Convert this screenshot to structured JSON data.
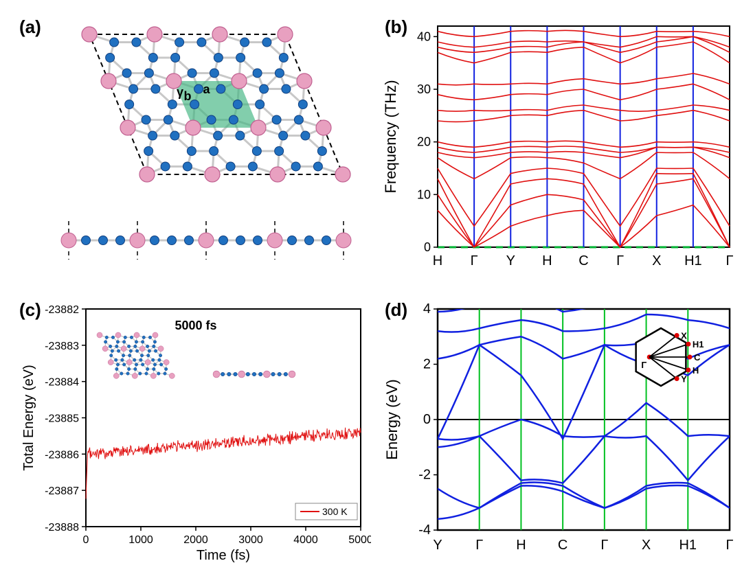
{
  "panels": [
    "(a)",
    "(b)",
    "(c)",
    "(d)"
  ],
  "a": {
    "lattice_labels": {
      "a": "a",
      "b": "b",
      "gamma": "γ"
    },
    "atom_colors": {
      "large": "#e8a0c0",
      "large_stroke": "#c06090",
      "small": "#2070c0",
      "small_stroke": "#104080",
      "bond": "#c8c8c8",
      "cell_fill": "#3fb380",
      "cell_fill_opacity": 0.65,
      "border_dash": "#000000"
    }
  },
  "b": {
    "xlabel_ticks": [
      "H",
      "Γ",
      "Y",
      "H",
      "C",
      "Γ",
      "X",
      "H1",
      "Γ"
    ],
    "ylabel": "Frequency (THz)",
    "ylim": [
      0,
      42
    ],
    "yticks": [
      0,
      10,
      20,
      30,
      40
    ],
    "vertical_line_color": "#1020e0",
    "line_color": "#e01010",
    "zero_dash_color": "#00b030",
    "axis_box_color": "#000000",
    "bands": [
      [
        7,
        0,
        4,
        6,
        7,
        0,
        6,
        8,
        0
      ],
      [
        10,
        0,
        8,
        10,
        9,
        0,
        12,
        13,
        0
      ],
      [
        13,
        0,
        12,
        13,
        12,
        0,
        14,
        14,
        0
      ],
      [
        15,
        4,
        14,
        15,
        14,
        4,
        15,
        15,
        4
      ],
      [
        17,
        13,
        17,
        17,
        16,
        13,
        18,
        18,
        13
      ],
      [
        18,
        17,
        18,
        18,
        18,
        17,
        19,
        19,
        17
      ],
      [
        19,
        18,
        19,
        19,
        19,
        18,
        19,
        19,
        18
      ],
      [
        20,
        19,
        20,
        20,
        20,
        19,
        20,
        20,
        19
      ],
      [
        24,
        24,
        25,
        25,
        26,
        24,
        25,
        26,
        24
      ],
      [
        26,
        26,
        26,
        26,
        27,
        26,
        26,
        27,
        26
      ],
      [
        29,
        28,
        29,
        29,
        30,
        28,
        30,
        31,
        28
      ],
      [
        31,
        31,
        31,
        31,
        32,
        31,
        32,
        33,
        31
      ],
      [
        37,
        35,
        37,
        37,
        38,
        35,
        38,
        39,
        35
      ],
      [
        38,
        37,
        38,
        38,
        39,
        37,
        39,
        40,
        37
      ],
      [
        39,
        38,
        39,
        39,
        39,
        38,
        40,
        40,
        38
      ],
      [
        41,
        40,
        41,
        41,
        41,
        40,
        41,
        41,
        40
      ]
    ]
  },
  "c": {
    "inset_label": "5000 fs",
    "xlabel": "Time (fs)",
    "ylabel": "Total Energy (eV)",
    "xlim": [
      0,
      5000
    ],
    "xticks": [
      0,
      1000,
      2000,
      3000,
      4000,
      5000
    ],
    "ylim": [
      -23888,
      -23882
    ],
    "yticks": [
      -23888,
      -23887,
      -23886,
      -23885,
      -23884,
      -23883,
      -23882
    ],
    "line_color": "#e01010",
    "legend_text": "300 K",
    "axis_box_color": "#000000",
    "energy_baseline_start": -23887.3,
    "energy_mean_start": -23886.0,
    "energy_mean_end": -23885.4,
    "energy_noise_amp": 0.25,
    "atom_colors": {
      "large": "#e8a0c0",
      "large_stroke": "#c06090",
      "small": "#2070c0",
      "small_stroke": "#104080",
      "bond": "#c8c8c8"
    }
  },
  "d": {
    "xlabel_ticks": [
      "Y",
      "Γ",
      "H",
      "C",
      "Γ",
      "X",
      "H1",
      "Γ"
    ],
    "ylabel": "Energy (eV)",
    "ylim": [
      -4,
      4
    ],
    "yticks": [
      -4,
      -2,
      0,
      2,
      4
    ],
    "vertical_line_color": "#00c020",
    "line_color": "#1020e0",
    "axis_box_color": "#000000",
    "zero_color": "#000000",
    "bz_labels": [
      "X",
      "H1",
      "C",
      "H",
      "Y",
      "Γ"
    ],
    "bands": [
      [
        -3.6,
        -3.2,
        -2.4,
        -2.6,
        -3.2,
        -2.5,
        -2.4,
        -3.2
      ],
      [
        -2.5,
        -3.2,
        -2.3,
        -2.4,
        -3.2,
        -2.4,
        -2.3,
        -3.2
      ],
      [
        -1.0,
        -0.6,
        -2.2,
        -2.3,
        -0.6,
        -0.6,
        -2.2,
        -0.6
      ],
      [
        -0.7,
        -0.6,
        0.0,
        -0.6,
        -0.6,
        0.6,
        -0.6,
        -0.6
      ],
      [
        -0.7,
        2.7,
        1.6,
        -0.7,
        2.7,
        2.0,
        1.6,
        2.7
      ],
      [
        2.2,
        2.7,
        3.0,
        2.2,
        2.7,
        2.8,
        2.2,
        2.7
      ],
      [
        3.2,
        3.3,
        3.6,
        3.2,
        3.3,
        3.8,
        3.6,
        3.3
      ],
      [
        3.9,
        4.2,
        4.4,
        3.9,
        4.2,
        4.5,
        4.4,
        4.2
      ]
    ]
  }
}
